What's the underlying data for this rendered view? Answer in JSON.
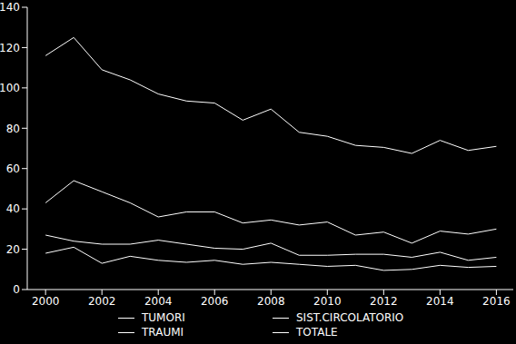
{
  "chart_data": {
    "type": "line",
    "x": [
      2000,
      2001,
      2002,
      2003,
      2004,
      2005,
      2006,
      2007,
      2008,
      2009,
      2010,
      2011,
      2012,
      2013,
      2014,
      2015,
      2016
    ],
    "xlim": [
      1999.35,
      2016.6
    ],
    "xticks": [
      2000,
      2002,
      2004,
      2006,
      2008,
      2010,
      2012,
      2014,
      2016
    ],
    "ylim": [
      0,
      140
    ],
    "yticks": [
      0,
      20,
      40,
      60,
      80,
      100,
      120,
      140
    ],
    "grid": false,
    "series": [
      {
        "name": "TUMORI",
        "color": "#ffffff",
        "values": [
          43,
          54,
          48.5,
          43,
          36,
          38.5,
          38.5,
          33,
          34.5,
          32,
          33.5,
          27,
          28.5,
          23,
          29,
          27.5,
          30
        ]
      },
      {
        "name": "SIST.CIRCOLATORIO",
        "color": "#ffffff",
        "values": [
          27,
          24,
          22.5,
          22.5,
          24.5,
          22.5,
          20.5,
          20,
          23,
          17,
          17,
          17.5,
          17.5,
          16,
          18.5,
          14.5,
          16
        ]
      },
      {
        "name": "TRAUMI",
        "color": "#ffffff",
        "values": [
          18,
          21,
          13,
          16.5,
          14.5,
          13.5,
          14.5,
          12.5,
          13.5,
          12.5,
          11.5,
          12,
          9.5,
          10,
          12,
          11,
          11.5
        ]
      },
      {
        "name": "TOTALE",
        "color": "#ffffff",
        "values": [
          116,
          125,
          109,
          104,
          97,
          93.5,
          92.5,
          84,
          89.5,
          78,
          76,
          71.5,
          70.5,
          67.5,
          74,
          69,
          71
        ]
      }
    ]
  }
}
